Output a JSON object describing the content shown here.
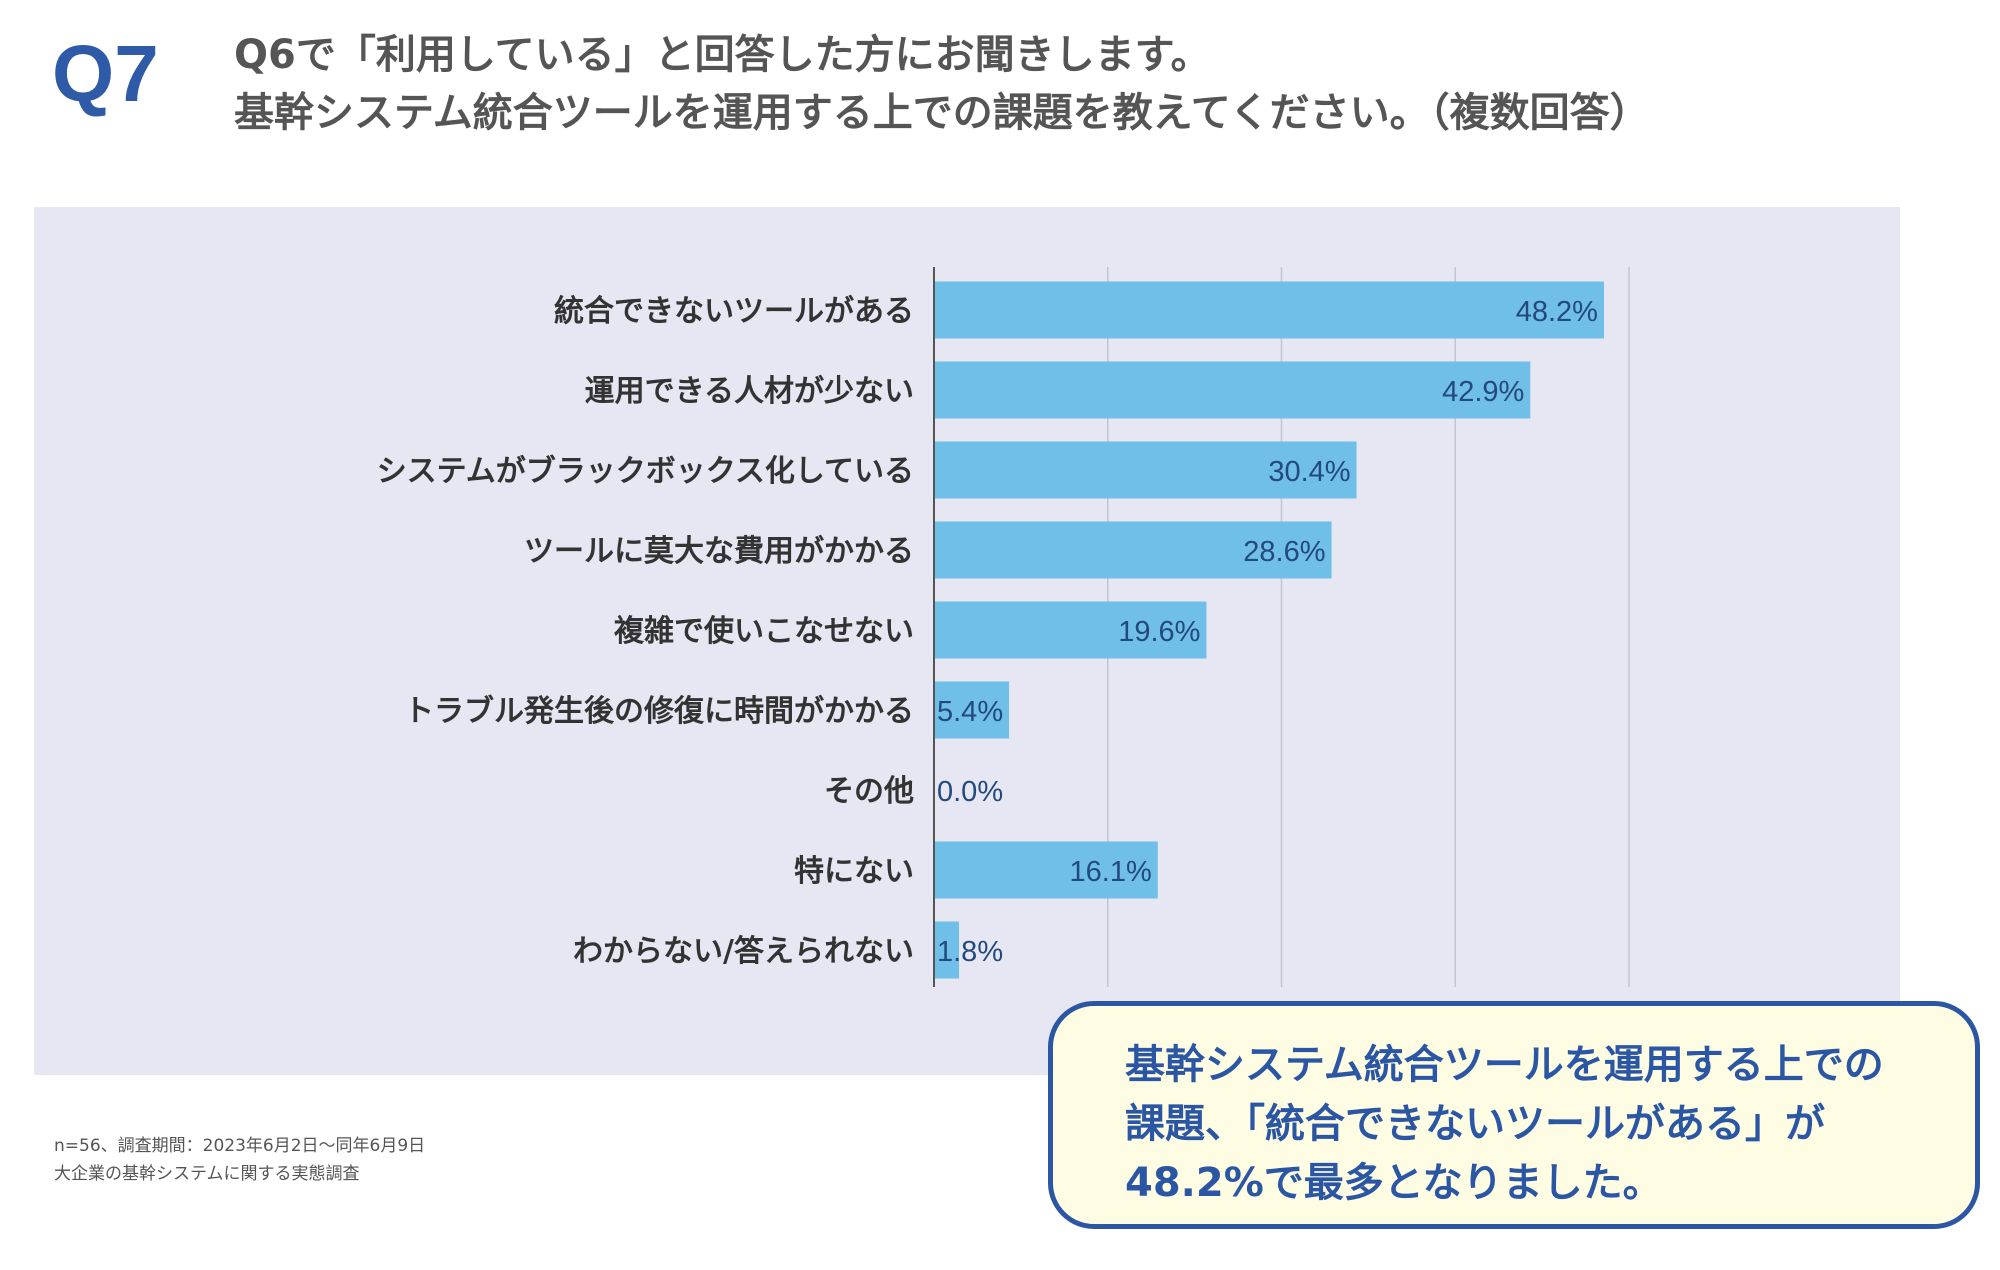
{
  "header": {
    "question_number": "Q7",
    "title_line1": "Q6で「利用している」と回答した方にお聞きします。",
    "title_line2": "基幹システム統合ツールを運用する上での課題を教えてください。（複数回答）"
  },
  "chart_data": {
    "type": "bar",
    "orientation": "horizontal",
    "categories": [
      "統合できないツールがある",
      "運用できる人材が少ない",
      "システムがブラックボックス化している",
      "ツールに莫大な費用がかかる",
      "複雑で使いこなせない",
      "トラブル発生後の修復に時間がかかる",
      "その他",
      "特にない",
      "わからない/答えられない"
    ],
    "values": [
      48.2,
      42.9,
      30.4,
      28.6,
      19.6,
      5.4,
      0.0,
      16.1,
      1.8
    ],
    "data_labels": [
      "48.2%",
      "42.9%",
      "30.4%",
      "28.6%",
      "19.6%",
      "5.4%",
      "0.0%",
      "16.1%",
      "1.8%"
    ],
    "xlim": [
      0,
      60
    ],
    "gridlines": [
      12.5,
      25,
      37.5,
      50
    ],
    "grid": true,
    "legend": false,
    "colors": {
      "bar": "#6fbfe9",
      "panel": "#e6e7f3",
      "label": "#333333",
      "value_label": "#234a7e",
      "grid": "#c3c4d4",
      "axis": "#555555"
    }
  },
  "footnote": {
    "line1": "n=56、調査期間：2023年6月2日〜同年6月9日",
    "line2": "大企業の基幹システムに関する実態調査"
  },
  "callout": {
    "line1": "基幹システム統合ツールを運用する上での",
    "line2": "課題、「統合できないツールがある」が",
    "line3": "48.2%で最多となりました。"
  }
}
